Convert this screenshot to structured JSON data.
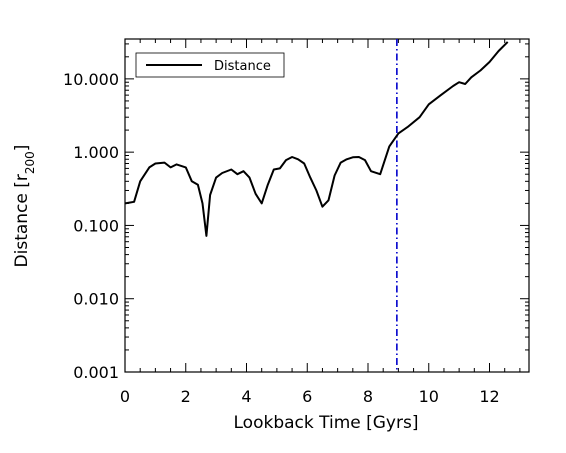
{
  "chart_data": {
    "type": "line",
    "title": "",
    "xlabel": "Lookback Time [Gyrs]",
    "ylabel_main": "Distance [r",
    "ylabel_sub": "200",
    "ylabel_close": "]",
    "xlim": [
      0,
      13.3
    ],
    "ylim": [
      0.001,
      35
    ],
    "yscale": "log",
    "grid": false,
    "legend_position": "top-left",
    "xticks": [
      0,
      2,
      4,
      6,
      8,
      10,
      12
    ],
    "xtick_labels": [
      "0",
      "2",
      "4",
      "6",
      "8",
      "10",
      "12"
    ],
    "yticks": [
      0.001,
      0.01,
      0.1,
      1,
      10
    ],
    "ytick_labels": [
      "0.001",
      "0.010",
      "0.100",
      "1.000",
      "10.000"
    ],
    "vline": {
      "x": 8.95,
      "color": "#0000cc"
    },
    "series": [
      {
        "name": "Distance",
        "color": "#000000",
        "x": [
          0.0,
          0.3,
          0.5,
          0.8,
          1.0,
          1.3,
          1.5,
          1.7,
          2.0,
          2.2,
          2.4,
          2.55,
          2.68,
          2.8,
          3.0,
          3.2,
          3.5,
          3.7,
          3.9,
          4.1,
          4.3,
          4.5,
          4.7,
          4.9,
          5.1,
          5.3,
          5.5,
          5.7,
          5.9,
          6.1,
          6.3,
          6.5,
          6.7,
          6.9,
          7.1,
          7.3,
          7.5,
          7.7,
          7.9,
          8.1,
          8.4,
          8.7,
          9.0,
          9.3,
          9.7,
          10.0,
          10.4,
          10.8,
          11.0,
          11.2,
          11.4,
          11.7,
          12.0,
          12.3,
          12.6
        ],
        "y": [
          0.2,
          0.21,
          0.4,
          0.62,
          0.7,
          0.72,
          0.62,
          0.68,
          0.62,
          0.4,
          0.36,
          0.2,
          0.072,
          0.26,
          0.45,
          0.52,
          0.58,
          0.5,
          0.55,
          0.45,
          0.27,
          0.2,
          0.36,
          0.58,
          0.6,
          0.78,
          0.86,
          0.8,
          0.7,
          0.45,
          0.3,
          0.18,
          0.22,
          0.48,
          0.72,
          0.8,
          0.85,
          0.86,
          0.78,
          0.55,
          0.5,
          1.2,
          1.8,
          2.2,
          3.0,
          4.5,
          6.0,
          8.0,
          9.0,
          8.5,
          10.5,
          13.0,
          17.0,
          24.0,
          32.0
        ]
      }
    ]
  }
}
